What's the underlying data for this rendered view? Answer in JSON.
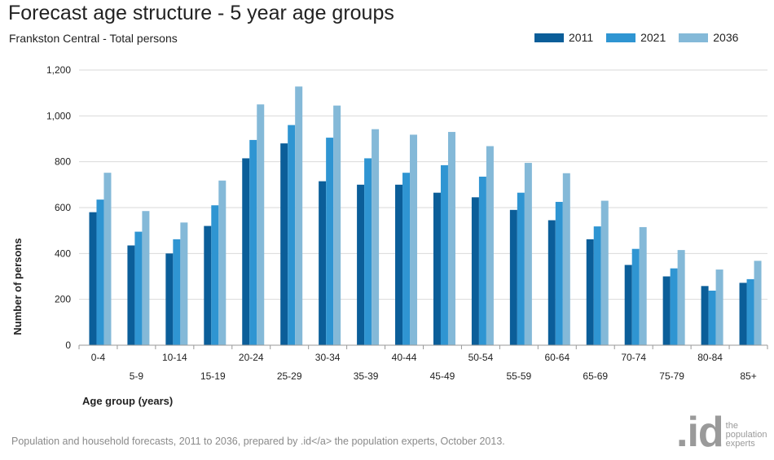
{
  "header": {
    "title": "Forecast age structure - 5 year age groups",
    "subtitle": "Frankston Central - Total persons"
  },
  "colors": {
    "series_2011": "#0b5e99",
    "series_2021": "#2f95d2",
    "series_2036": "#84b9d8",
    "grid": "#d9d9d9",
    "footer_text": "#8a8a8a"
  },
  "chart_data": {
    "type": "bar",
    "title": "Forecast age structure - 5 year age groups",
    "subtitle": "Frankston Central - Total persons",
    "xlabel": "Age group (years)",
    "ylabel": "Number of persons",
    "ylim": [
      0,
      1200
    ],
    "yticks": [
      0,
      200,
      400,
      600,
      800,
      1000,
      1200
    ],
    "ytick_labels": [
      "0",
      "200",
      "400",
      "600",
      "800",
      "1,000",
      "1,200"
    ],
    "grid": "horizontal",
    "legend_position": "top-right",
    "categories": [
      "0-4",
      "5-9",
      "10-14",
      "15-19",
      "20-24",
      "25-29",
      "30-34",
      "35-39",
      "40-44",
      "45-49",
      "50-54",
      "55-59",
      "60-64",
      "65-69",
      "70-74",
      "75-79",
      "80-84",
      "85+"
    ],
    "series": [
      {
        "name": "2011",
        "values": [
          580,
          435,
          400,
          520,
          815,
          880,
          715,
          700,
          700,
          665,
          645,
          590,
          545,
          462,
          350,
          300,
          258,
          272
        ]
      },
      {
        "name": "2021",
        "values": [
          635,
          495,
          462,
          610,
          895,
          960,
          905,
          815,
          752,
          785,
          735,
          665,
          625,
          518,
          420,
          335,
          238,
          288
        ]
      },
      {
        "name": "2036",
        "values": [
          752,
          585,
          535,
          718,
          1050,
          1128,
          1045,
          942,
          918,
          930,
          868,
          795,
          750,
          630,
          515,
          415,
          330,
          368
        ]
      }
    ]
  },
  "footer": {
    "source": "Population and household forecasts, 2011 to 2036, prepared by .id</a> the population experts, October 2013."
  },
  "logo": {
    "mark": ".id",
    "line1": "the",
    "line2": "population",
    "line3": "experts"
  }
}
